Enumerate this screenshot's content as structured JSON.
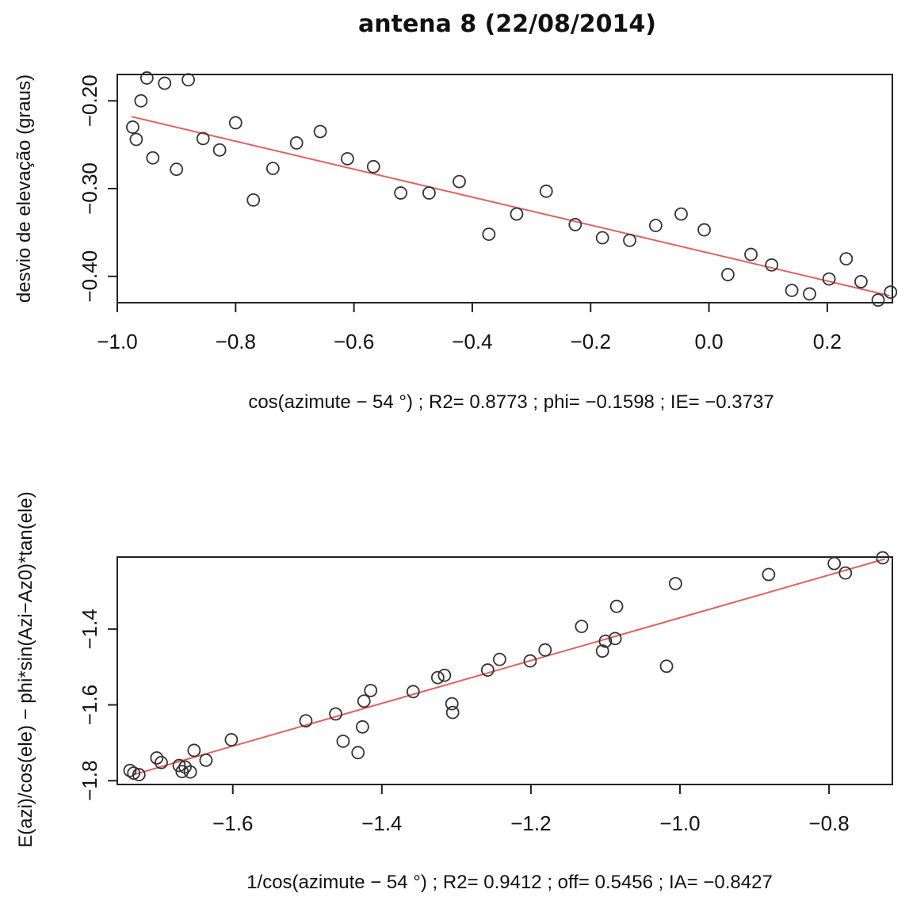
{
  "figure": {
    "title": "antena 8 (22/08/2014)"
  },
  "chart_data": [
    {
      "type": "scatter",
      "title": "",
      "xlabel": "cos(azimute −  54 °) ; R2= 0.8773 ; phi= −0.1598 ; IE= −0.3737",
      "ylabel": "desvio de elevação (graus)",
      "xlim": [
        -1.0,
        0.31
      ],
      "ylim": [
        -0.43,
        -0.17
      ],
      "xticks": [
        -1.0,
        -0.8,
        -0.6,
        -0.4,
        -0.2,
        0.0,
        0.2
      ],
      "xtick_labels": [
        "−1.0",
        "−0.8",
        "−0.6",
        "−0.4",
        "−0.2",
        "0.0",
        "0.2"
      ],
      "yticks": [
        -0.2,
        -0.3,
        -0.4
      ],
      "ytick_labels": [
        "−0.20",
        "−0.30",
        "−0.40"
      ],
      "grid": false,
      "point_color": "#333333",
      "fit_color": "#e06060",
      "fit_line": {
        "x": [
          -0.976,
          0.305
        ],
        "y": [
          -0.218,
          -0.422
        ]
      },
      "x": [
        -0.974,
        -0.968,
        -0.96,
        -0.95,
        -0.94,
        -0.92,
        -0.9,
        -0.88,
        -0.855,
        -0.827,
        -0.8,
        -0.77,
        -0.737,
        -0.697,
        -0.657,
        -0.611,
        -0.567,
        -0.521,
        -0.473,
        -0.422,
        -0.372,
        -0.325,
        -0.275,
        -0.226,
        -0.18,
        -0.134,
        -0.09,
        -0.047,
        -0.008,
        0.032,
        0.071,
        0.106,
        0.14,
        0.17,
        0.203,
        0.232,
        0.257,
        0.286,
        0.307
      ],
      "y": [
        -0.23,
        -0.244,
        -0.2,
        -0.174,
        -0.265,
        -0.18,
        -0.278,
        -0.176,
        -0.243,
        -0.256,
        -0.225,
        -0.313,
        -0.277,
        -0.248,
        -0.235,
        -0.266,
        -0.275,
        -0.305,
        -0.305,
        -0.292,
        -0.352,
        -0.329,
        -0.303,
        -0.341,
        -0.356,
        -0.359,
        -0.342,
        -0.329,
        -0.347,
        -0.398,
        -0.375,
        -0.387,
        -0.416,
        -0.42,
        -0.403,
        -0.38,
        -0.406,
        -0.427,
        -0.418
      ]
    },
    {
      "type": "scatter",
      "title": "",
      "xlabel": "1/cos(azimute −  54 °) ; R2= 0.9412 ; off= 0.5456 ; IA= −0.8427",
      "ylabel": "E(azi)/cos(ele) − phi*sin(Azi−Az0)*tan(ele)",
      "xlim": [
        -1.755,
        -0.715
      ],
      "ylim": [
        -1.81,
        -1.21
      ],
      "xticks": [
        -1.6,
        -1.4,
        -1.2,
        -1.0,
        -0.8
      ],
      "xtick_labels": [
        "−1.6",
        "−1.4",
        "−1.2",
        "−1.0",
        "−0.8"
      ],
      "yticks": [
        -1.8,
        -1.6,
        -1.4
      ],
      "ytick_labels": [
        "−1.8",
        "−1.6",
        "−1.4"
      ],
      "grid": false,
      "point_color": "#333333",
      "fit_color": "#e06060",
      "fit_line": {
        "x": [
          -1.735,
          -0.725
        ],
        "y": [
          -1.785,
          -1.215
        ]
      },
      "x": [
        -1.738,
        -1.733,
        -1.726,
        -1.702,
        -1.696,
        -1.672,
        -1.668,
        -1.664,
        -1.657,
        -1.652,
        -1.636,
        -1.602,
        -1.502,
        -1.462,
        -1.452,
        -1.432,
        -1.426,
        -1.424,
        -1.415,
        -1.358,
        -1.325,
        -1.316,
        -1.306,
        -1.305,
        -1.258,
        -1.242,
        -1.201,
        -1.181,
        -1.132,
        -1.104,
        -1.1,
        -1.087,
        -1.085,
        -1.018,
        -1.006,
        -0.881,
        -0.793,
        -0.778,
        -0.728
      ],
      "y": [
        -1.773,
        -1.78,
        -1.784,
        -1.74,
        -1.752,
        -1.76,
        -1.776,
        -1.764,
        -1.777,
        -1.72,
        -1.746,
        -1.692,
        -1.642,
        -1.624,
        -1.696,
        -1.726,
        -1.658,
        -1.59,
        -1.562,
        -1.565,
        -1.528,
        -1.522,
        -1.597,
        -1.62,
        -1.508,
        -1.48,
        -1.484,
        -1.455,
        -1.393,
        -1.458,
        -1.432,
        -1.425,
        -1.34,
        -1.498,
        -1.28,
        -1.256,
        -1.227,
        -1.252,
        -1.212
      ]
    }
  ]
}
